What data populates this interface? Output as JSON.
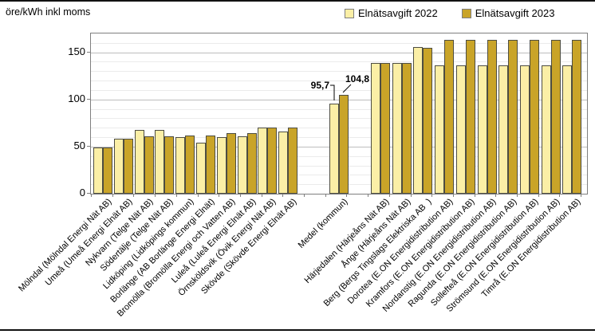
{
  "figure": {
    "y_axis_title": "öre/kWh inkl moms",
    "legend": [
      {
        "label": "Elnätsavgift 2022",
        "color": "#FBEFA6"
      },
      {
        "label": "Elnätsavgift 2023",
        "color": "#C9A428"
      }
    ]
  },
  "colors": {
    "series_2022": "#FBEFA6",
    "series_2023": "#C9A428",
    "bar_border": "#4D4D42",
    "grid_minor": "#EBEBEB",
    "grid_major": "#BDBDBD",
    "plot_border": "#7F7F7F"
  },
  "chart_data": {
    "type": "bar",
    "title": "",
    "ylabel": "öre/kWh inkl moms",
    "xlabel": "",
    "ylim": [
      0,
      170
    ],
    "yticks": [
      0,
      50,
      100,
      150
    ],
    "grid": {
      "minor_step": 10,
      "major_step": 50,
      "visible": true
    },
    "legend_position": "top-right",
    "series_names": [
      "Elnätsavgift 2022",
      "Elnätsavgift 2023"
    ],
    "groups": [
      {
        "id": "municipal-network-companies",
        "categories": [
          "Mölndal (Mölndal Energi Nät AB)",
          "Umeå (Umeå Energi Elnät AB)",
          "Nykvarn (Telge Nät AB)",
          "Södertälje (Telge Nät AB)",
          "Lidköping (Lidköpings kommun)",
          "Borlänge (AB Borlänge Energi Elnät)",
          "Bromölla (Bromölla Energi och Vatten AB)",
          "Luleå (Luleå Energi Elnät AB)",
          "Örnsköldsvik (Övik Energi Nät AB)",
          "Skövde (Skövde Energi Elnät AB)"
        ],
        "series": [
          {
            "name": "Elnätsavgift 2022",
            "values": [
              49,
              58,
              68,
              68,
              60,
              54,
              60,
              61,
              70,
              66
            ]
          },
          {
            "name": "Elnätsavgift 2023",
            "values": [
              49,
              58,
              61,
              61,
              62,
              62,
              64,
              64,
              70,
              70
            ]
          }
        ]
      },
      {
        "id": "average",
        "categories": [
          "Medel (kommun)"
        ],
        "series": [
          {
            "name": "Elnätsavgift 2022",
            "values": [
              95.7
            ]
          },
          {
            "name": "Elnätsavgift 2023",
            "values": [
              104.8
            ]
          }
        ]
      },
      {
        "id": "highest-fee-municipalities",
        "categories": [
          "Härjedalen (Härjeåns Nät AB)",
          "Ånge (Härjeåns Nät AB)",
          "Berg (Bergs Tingslags Elektriska AB  )",
          "Dorotea (E.ON Energidistribution AB)",
          "Kramfors (E.ON Energidistribution AB)",
          "Nordanstig (E.ON Energidistribution AB)",
          "Ragunda (E.ON Energidistribution AB)",
          "Sollefteå (E.ON Energidistribution AB)",
          "Strömsund (E.ON Energidistribution AB)",
          "Timrå (E.ON Energidistribution AB)"
        ],
        "series": [
          {
            "name": "Elnätsavgift 2022",
            "values": [
              139,
              139,
              156,
              136,
              136,
              136,
              136,
              136,
              136,
              136
            ]
          },
          {
            "name": "Elnätsavgift 2023",
            "values": [
              139,
              139,
              155,
              163,
              163,
              163,
              163,
              163,
              163,
              163
            ]
          }
        ]
      }
    ],
    "annotations": [
      {
        "target": "Medel (kommun)",
        "series": "Elnätsavgift 2022",
        "value": 95.7,
        "text": "95,7"
      },
      {
        "target": "Medel (kommun)",
        "series": "Elnätsavgift 2023",
        "value": 104.8,
        "text": "104,8"
      }
    ]
  }
}
